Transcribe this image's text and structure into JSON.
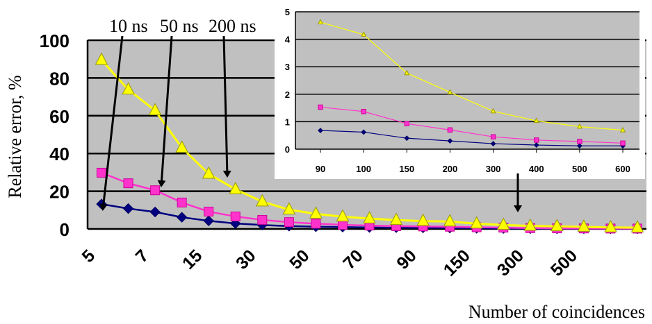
{
  "chart_data": [
    {
      "type": "line",
      "xlabel": "Number of coincidences",
      "ylabel": "Relative error, %",
      "ylim": [
        0,
        100
      ],
      "yticks": [
        0,
        20,
        40,
        60,
        80,
        100
      ],
      "x_tick_labels": [
        "5",
        "7",
        "15",
        "30",
        "50",
        "70",
        "90",
        "150",
        "300",
        "500"
      ],
      "grid": true,
      "background": "#c0c0c0",
      "series": [
        {
          "label": "10 ns",
          "color": "#000080",
          "marker": "diamond",
          "values": [
            13.2,
            10.8,
            9.0,
            6.2,
            4.3,
            2.9,
            2.1,
            1.5,
            1.2,
            1.0,
            0.8,
            0.7,
            0.6,
            0.5,
            0.35,
            0.25,
            0.18,
            0.14,
            0.12,
            0.1,
            0.08
          ]
        },
        {
          "label": "50 ns",
          "color": "#ff33cc",
          "marker": "square",
          "values": [
            29.8,
            24.2,
            20.5,
            14.0,
            9.2,
            6.6,
            4.8,
            3.6,
            2.8,
            2.2,
            1.8,
            1.5,
            1.35,
            1.2,
            0.9,
            0.7,
            0.45,
            0.33,
            0.28,
            0.22,
            0.2
          ]
        },
        {
          "label": "200 ns",
          "color": "#ffff00",
          "marker": "triangle",
          "values": [
            89.5,
            73.8,
            62.8,
            43.0,
            29.2,
            21.0,
            14.5,
            10.2,
            8.0,
            6.5,
            5.5,
            4.7,
            4.2,
            3.9,
            2.8,
            2.1,
            1.6,
            1.4,
            1.1,
            0.8,
            0.7
          ]
        }
      ],
      "annotations": [
        "10 ns",
        "50 ns",
        "200 ns"
      ]
    },
    {
      "type": "line",
      "categories": [
        "90",
        "100",
        "150",
        "200",
        "300",
        "400",
        "500",
        "600"
      ],
      "ylim": [
        0,
        5
      ],
      "yticks": [
        0,
        1,
        2,
        3,
        4,
        5
      ],
      "grid": true,
      "background": "#c0c0c0",
      "series": [
        {
          "label": "10 ns",
          "color": "#000080",
          "marker": "diamond",
          "values": [
            0.68,
            0.62,
            0.4,
            0.3,
            0.2,
            0.15,
            0.12,
            0.12
          ]
        },
        {
          "label": "50 ns",
          "color": "#ff33cc",
          "marker": "square",
          "values": [
            1.53,
            1.37,
            0.93,
            0.7,
            0.45,
            0.33,
            0.28,
            0.22
          ]
        },
        {
          "label": "200 ns",
          "color": "#ffff00",
          "marker": "triangle",
          "values": [
            4.62,
            4.17,
            2.77,
            2.07,
            1.38,
            1.03,
            0.82,
            0.69
          ]
        }
      ]
    }
  ]
}
